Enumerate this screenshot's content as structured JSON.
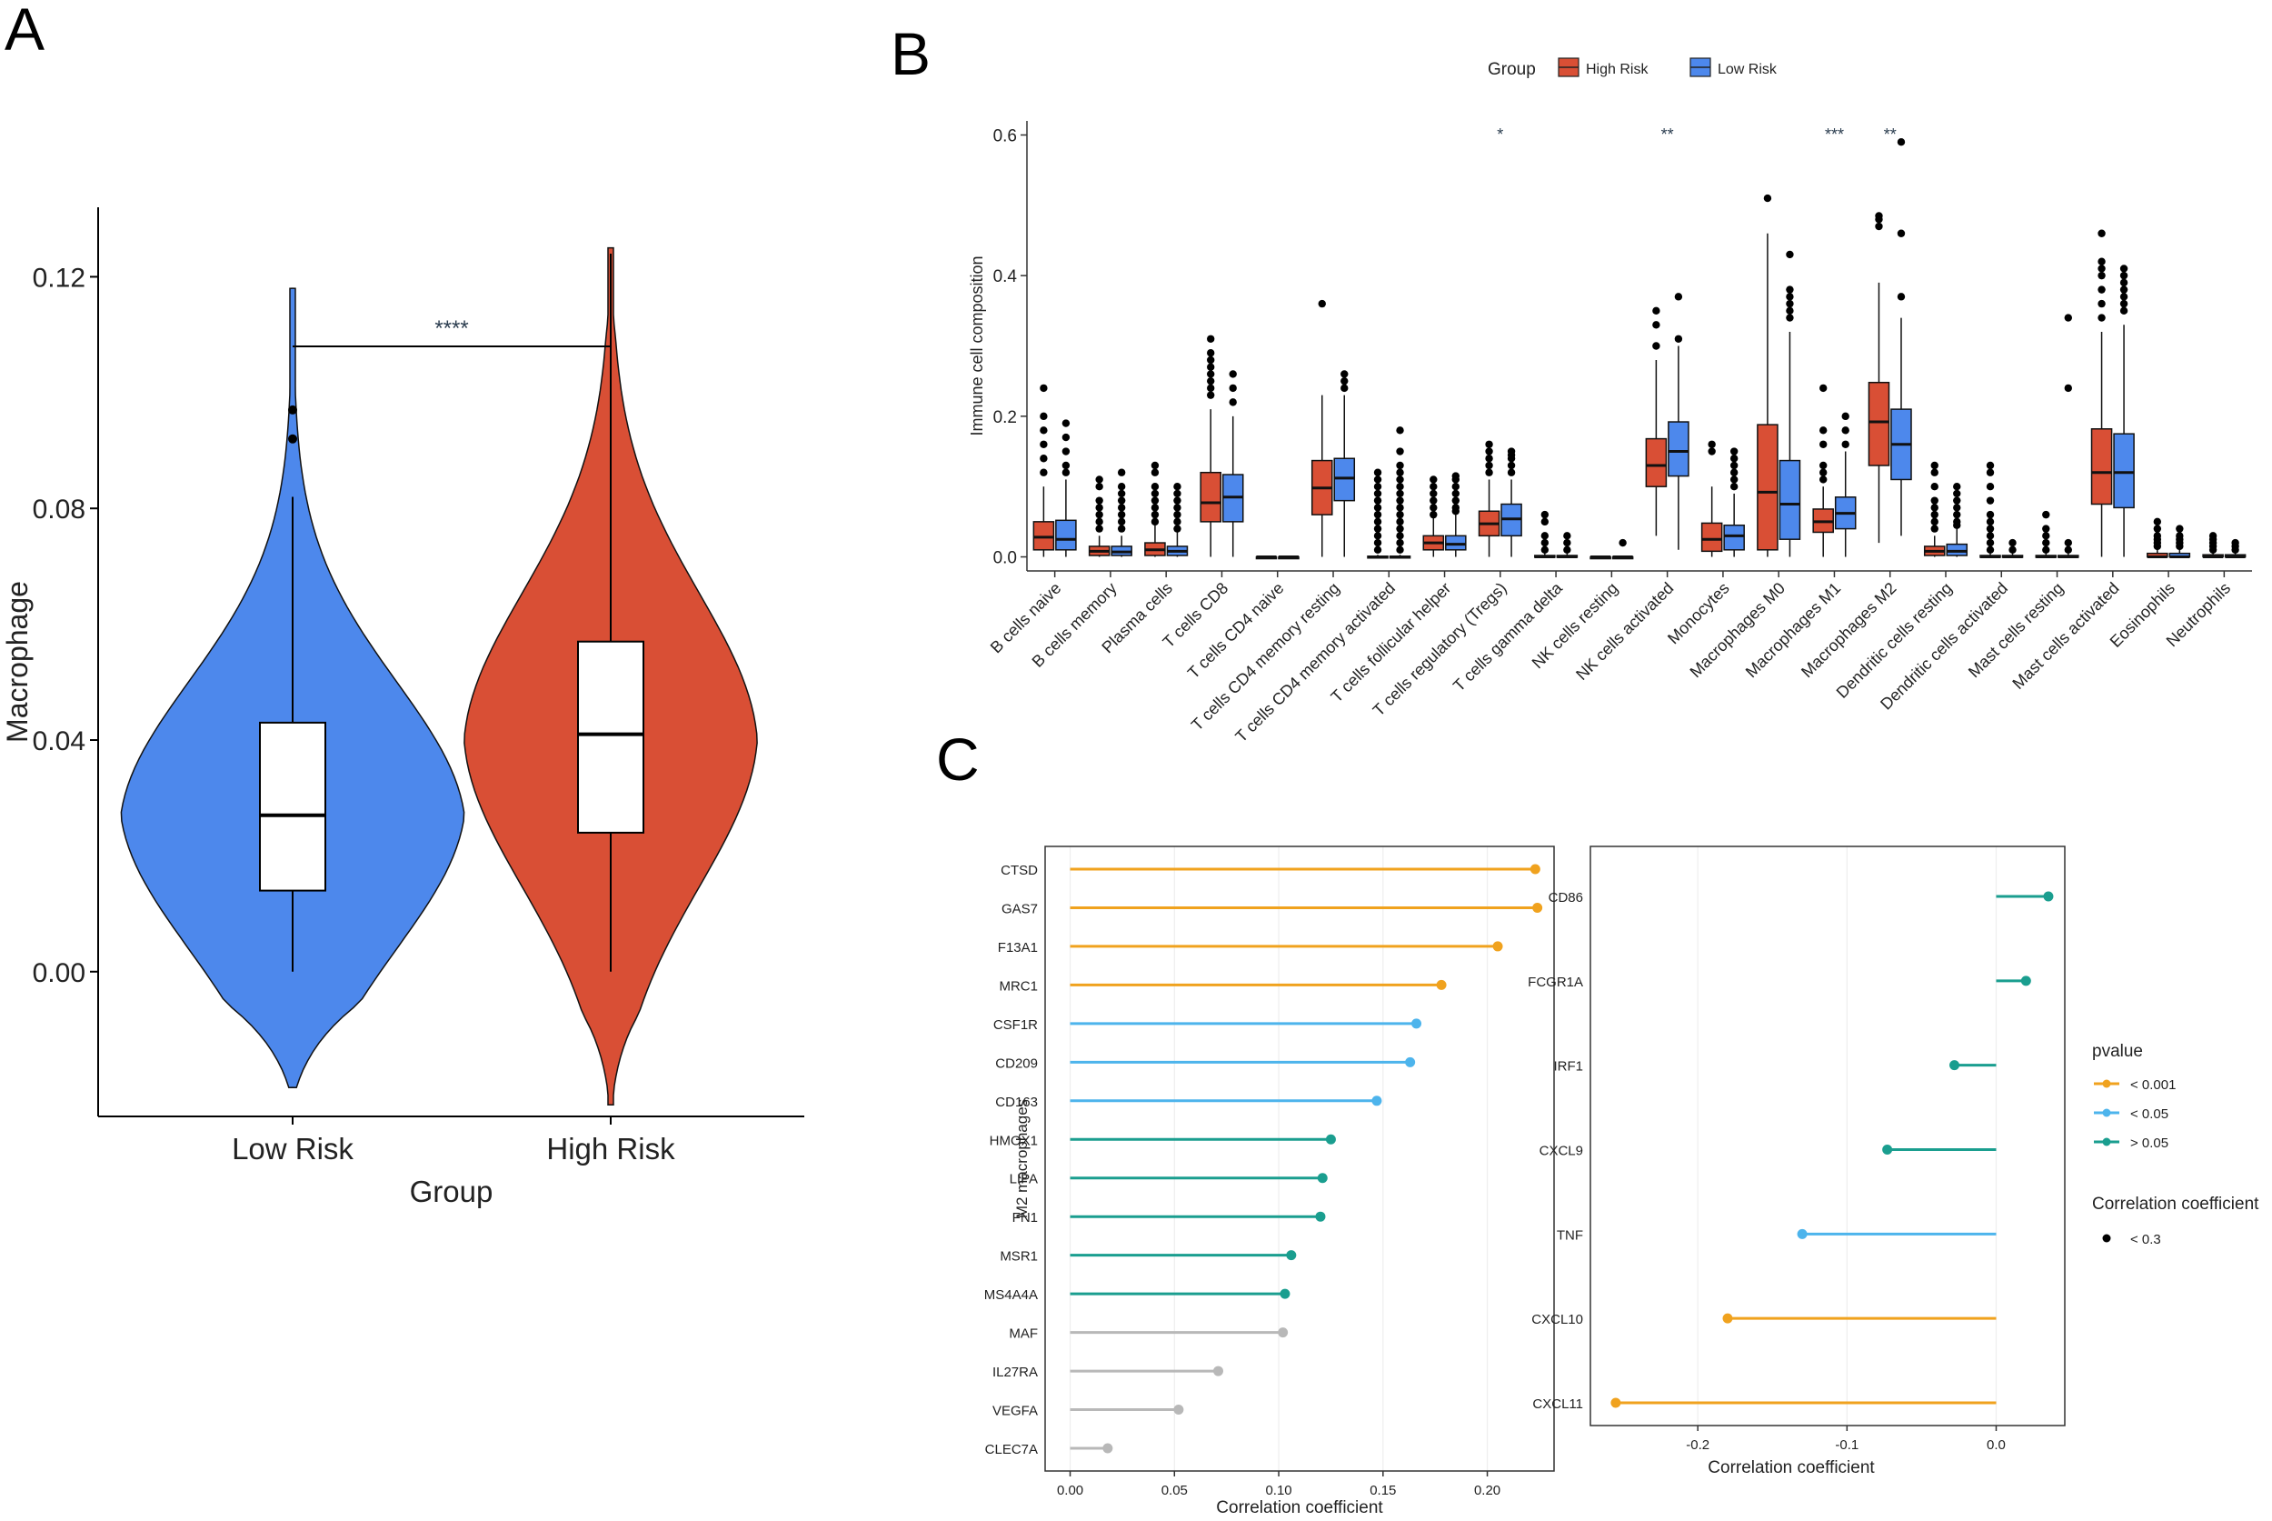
{
  "panels": {
    "a": "A",
    "b": "B",
    "c": "C"
  },
  "chart_data": [
    {
      "id": "A",
      "type": "violin",
      "xlabel": "Group",
      "ylabel": "Macrophage",
      "categories": [
        "Low Risk",
        "High Risk"
      ],
      "colors": {
        "Low Risk": "#4d88ec",
        "High Risk": "#d94f35"
      },
      "yticks": [
        0.0,
        0.04,
        0.08,
        0.12
      ],
      "ylim": [
        -0.025,
        0.132
      ],
      "significance": "****",
      "groups": [
        {
          "name": "Low Risk",
          "min": 0.0,
          "q1": 0.014,
          "median": 0.027,
          "q3": 0.043,
          "whisker_high": 0.082,
          "outliers": [
            0.092,
            0.097
          ],
          "range": [
            -0.02,
            0.118
          ]
        },
        {
          "name": "High Risk",
          "min": 0.0,
          "q1": 0.024,
          "median": 0.041,
          "q3": 0.057,
          "whisker_high": 0.124,
          "outliers": [],
          "range": [
            -0.023,
            0.125
          ]
        }
      ]
    },
    {
      "id": "B",
      "type": "boxplot",
      "legend_title": "Group",
      "legend_position": "top",
      "series": [
        {
          "name": "High Risk",
          "color": "#d94f35"
        },
        {
          "name": "Low Risk",
          "color": "#4d88ec"
        }
      ],
      "ylabel": "Immune cell composition",
      "yticks": [
        0.0,
        0.2,
        0.4,
        0.6
      ],
      "ylim": [
        -0.02,
        0.62
      ],
      "categories": [
        "B cells naive",
        "B cells memory",
        "Plasma cells",
        "T cells CD8",
        "T cells CD4 naive",
        "T cells CD4 memory resting",
        "T cells CD4 memory activated",
        "T cells follicular helper",
        "T cells regulatory (Tregs)",
        "T cells gamma delta",
        "NK cells resting",
        "NK cells activated",
        "Monocytes",
        "Macrophages M0",
        "Macrophages M1",
        "Macrophages M2",
        "Dendritic cells resting",
        "Dendritic cells activated",
        "Mast cells resting",
        "Mast cells activated",
        "Eosinophils",
        "Neutrophils"
      ],
      "significance": [
        "",
        "",
        "",
        "",
        "",
        "",
        "",
        "",
        "*",
        "",
        "",
        "**",
        "",
        "",
        "***",
        "**",
        "",
        "",
        "",
        "",
        "",
        ""
      ],
      "boxes": [
        [
          {
            "q1": 0.01,
            "med": 0.028,
            "q3": 0.05,
            "wl": 0,
            "wh": 0.1,
            "out": [
              0.12,
              0.14,
              0.16,
              0.18,
              0.2,
              0.24
            ]
          },
          {
            "q1": 0.01,
            "med": 0.025,
            "q3": 0.052,
            "wl": 0,
            "wh": 0.11,
            "out": [
              0.12,
              0.13,
              0.15,
              0.17,
              0.19
            ]
          }
        ],
        [
          {
            "q1": 0.002,
            "med": 0.008,
            "q3": 0.015,
            "wl": 0,
            "wh": 0.03,
            "out": [
              0.04,
              0.05,
              0.06,
              0.07,
              0.08,
              0.1,
              0.11
            ]
          },
          {
            "q1": 0.002,
            "med": 0.007,
            "q3": 0.015,
            "wl": 0,
            "wh": 0.03,
            "out": [
              0.04,
              0.05,
              0.06,
              0.07,
              0.08,
              0.09,
              0.1,
              0.12
            ]
          }
        ],
        [
          {
            "q1": 0.002,
            "med": 0.01,
            "q3": 0.02,
            "wl": 0,
            "wh": 0.045,
            "out": [
              0.05,
              0.06,
              0.07,
              0.08,
              0.09,
              0.1,
              0.12,
              0.13
            ]
          },
          {
            "q1": 0.002,
            "med": 0.008,
            "q3": 0.015,
            "wl": 0,
            "wh": 0.035,
            "out": [
              0.04,
              0.05,
              0.06,
              0.07,
              0.08,
              0.09,
              0.1
            ]
          }
        ],
        [
          {
            "q1": 0.05,
            "med": 0.077,
            "q3": 0.12,
            "wl": 0,
            "wh": 0.21,
            "out": [
              0.23,
              0.24,
              0.25,
              0.26,
              0.27,
              0.28,
              0.29,
              0.31
            ]
          },
          {
            "q1": 0.05,
            "med": 0.085,
            "q3": 0.117,
            "wl": 0,
            "wh": 0.2,
            "out": [
              0.22,
              0.24,
              0.26
            ]
          }
        ],
        [
          {
            "q1": 0,
            "med": 0,
            "q3": 0,
            "wl": 0,
            "wh": 0,
            "out": []
          },
          {
            "q1": 0,
            "med": 0,
            "q3": 0,
            "wl": 0,
            "wh": 0,
            "out": []
          }
        ],
        [
          {
            "q1": 0.06,
            "med": 0.098,
            "q3": 0.137,
            "wl": 0,
            "wh": 0.23,
            "out": [
              0.36
            ]
          },
          {
            "q1": 0.08,
            "med": 0.112,
            "q3": 0.14,
            "wl": 0,
            "wh": 0.23,
            "out": [
              0.24,
              0.25,
              0.26
            ]
          }
        ],
        [
          {
            "q1": 0,
            "med": 0,
            "q3": 0.001,
            "wl": 0,
            "wh": 0.003,
            "out": [
              0.01,
              0.02,
              0.03,
              0.04,
              0.05,
              0.06,
              0.07,
              0.08,
              0.09,
              0.1,
              0.11,
              0.12
            ]
          },
          {
            "q1": 0,
            "med": 0,
            "q3": 0.001,
            "wl": 0,
            "wh": 0.003,
            "out": [
              0.01,
              0.02,
              0.03,
              0.04,
              0.05,
              0.06,
              0.07,
              0.08,
              0.09,
              0.1,
              0.11,
              0.12,
              0.13,
              0.15,
              0.18
            ]
          }
        ],
        [
          {
            "q1": 0.01,
            "med": 0.02,
            "q3": 0.03,
            "wl": 0,
            "wh": 0.055,
            "out": [
              0.06,
              0.07,
              0.08,
              0.09,
              0.1,
              0.11
            ]
          },
          {
            "q1": 0.01,
            "med": 0.018,
            "q3": 0.03,
            "wl": 0,
            "wh": 0.06,
            "out": [
              0.065,
              0.07,
              0.08,
              0.09,
              0.1,
              0.11,
              0.115
            ]
          }
        ],
        [
          {
            "q1": 0.03,
            "med": 0.047,
            "q3": 0.065,
            "wl": 0,
            "wh": 0.11,
            "out": [
              0.12,
              0.13,
              0.14,
              0.15,
              0.16
            ]
          },
          {
            "q1": 0.03,
            "med": 0.054,
            "q3": 0.075,
            "wl": 0,
            "wh": 0.11,
            "out": [
              0.12,
              0.13,
              0.14,
              0.145,
              0.15
            ]
          }
        ],
        [
          {
            "q1": 0,
            "med": 0,
            "q3": 0.002,
            "wl": 0,
            "wh": 0.005,
            "out": [
              0.01,
              0.02,
              0.03,
              0.05,
              0.06
            ]
          },
          {
            "q1": 0,
            "med": 0,
            "q3": 0.002,
            "wl": 0,
            "wh": 0.005,
            "out": [
              0.01,
              0.02,
              0.03
            ]
          }
        ],
        [
          {
            "q1": 0,
            "med": 0,
            "q3": 0,
            "wl": 0,
            "wh": 0,
            "out": []
          },
          {
            "q1": 0,
            "med": 0,
            "q3": 0,
            "wl": 0,
            "wh": 0,
            "out": [
              0.02
            ]
          }
        ],
        [
          {
            "q1": 0.1,
            "med": 0.13,
            "q3": 0.168,
            "wl": 0.03,
            "wh": 0.28,
            "out": [
              0.3,
              0.33,
              0.35
            ]
          },
          {
            "q1": 0.115,
            "med": 0.15,
            "q3": 0.192,
            "wl": 0.01,
            "wh": 0.3,
            "out": [
              0.31,
              0.37
            ]
          }
        ],
        [
          {
            "q1": 0.008,
            "med": 0.025,
            "q3": 0.048,
            "wl": 0,
            "wh": 0.1,
            "out": [
              0.15,
              0.16
            ]
          },
          {
            "q1": 0.01,
            "med": 0.03,
            "q3": 0.045,
            "wl": 0,
            "wh": 0.09,
            "out": [
              0.1,
              0.11,
              0.12,
              0.13,
              0.14,
              0.15
            ]
          }
        ],
        [
          {
            "q1": 0.01,
            "med": 0.092,
            "q3": 0.188,
            "wl": 0,
            "wh": 0.46,
            "out": [
              0.51
            ]
          },
          {
            "q1": 0.025,
            "med": 0.075,
            "q3": 0.137,
            "wl": 0,
            "wh": 0.32,
            "out": [
              0.34,
              0.35,
              0.36,
              0.37,
              0.38,
              0.43
            ]
          }
        ],
        [
          {
            "q1": 0.035,
            "med": 0.05,
            "q3": 0.068,
            "wl": 0,
            "wh": 0.1,
            "out": [
              0.11,
              0.12,
              0.13,
              0.16,
              0.18,
              0.24
            ]
          },
          {
            "q1": 0.04,
            "med": 0.062,
            "q3": 0.085,
            "wl": 0,
            "wh": 0.15,
            "out": [
              0.16,
              0.18,
              0.2
            ]
          }
        ],
        [
          {
            "q1": 0.13,
            "med": 0.192,
            "q3": 0.248,
            "wl": 0.02,
            "wh": 0.39,
            "out": [
              0.47,
              0.48,
              0.485
            ]
          },
          {
            "q1": 0.11,
            "med": 0.16,
            "q3": 0.21,
            "wl": 0.03,
            "wh": 0.34,
            "out": [
              0.37,
              0.46,
              0.59
            ]
          }
        ],
        [
          {
            "q1": 0.002,
            "med": 0.008,
            "q3": 0.015,
            "wl": 0,
            "wh": 0.03,
            "out": [
              0.04,
              0.05,
              0.06,
              0.07,
              0.08,
              0.1,
              0.12,
              0.13
            ]
          },
          {
            "q1": 0.002,
            "med": 0.008,
            "q3": 0.018,
            "wl": 0,
            "wh": 0.04,
            "out": [
              0.045,
              0.05,
              0.06,
              0.07,
              0.08,
              0.09,
              0.1
            ]
          }
        ],
        [
          {
            "q1": 0,
            "med": 0,
            "q3": 0.002,
            "wl": 0,
            "wh": 0.005,
            "out": [
              0.01,
              0.02,
              0.03,
              0.04,
              0.05,
              0.06,
              0.08,
              0.1,
              0.12,
              0.13
            ]
          },
          {
            "q1": 0,
            "med": 0,
            "q3": 0.002,
            "wl": 0,
            "wh": 0.005,
            "out": [
              0.01,
              0.02
            ]
          }
        ],
        [
          {
            "q1": 0,
            "med": 0,
            "q3": 0.002,
            "wl": 0,
            "wh": 0.005,
            "out": [
              0.01,
              0.02,
              0.03,
              0.04,
              0.06
            ]
          },
          {
            "q1": 0,
            "med": 0,
            "q3": 0.002,
            "wl": 0,
            "wh": 0.005,
            "out": [
              0.01,
              0.02,
              0.24,
              0.34
            ]
          }
        ],
        [
          {
            "q1": 0.075,
            "med": 0.12,
            "q3": 0.182,
            "wl": 0,
            "wh": 0.32,
            "out": [
              0.34,
              0.36,
              0.38,
              0.4,
              0.41,
              0.42,
              0.46
            ]
          },
          {
            "q1": 0.07,
            "med": 0.12,
            "q3": 0.175,
            "wl": 0,
            "wh": 0.33,
            "out": [
              0.35,
              0.36,
              0.37,
              0.38,
              0.39,
              0.4,
              0.41
            ]
          }
        ],
        [
          {
            "q1": 0,
            "med": 0,
            "q3": 0.005,
            "wl": 0,
            "wh": 0.01,
            "out": [
              0.015,
              0.02,
              0.025,
              0.03,
              0.04,
              0.05
            ]
          },
          {
            "q1": 0,
            "med": 0,
            "q3": 0.005,
            "wl": 0,
            "wh": 0.01,
            "out": [
              0.015,
              0.02,
              0.025,
              0.03,
              0.04
            ]
          }
        ],
        [
          {
            "q1": 0,
            "med": 0,
            "q3": 0.003,
            "wl": 0,
            "wh": 0.006,
            "out": [
              0.01,
              0.015,
              0.02,
              0.025,
              0.03
            ]
          },
          {
            "q1": 0,
            "med": 0,
            "q3": 0.003,
            "wl": 0,
            "wh": 0.006,
            "out": [
              0.01,
              0.015,
              0.02
            ]
          }
        ]
      ]
    },
    {
      "id": "C-left",
      "type": "lollipop",
      "ylabel": "M2 macrophages",
      "xlabel": "Correlation coefficient",
      "xticks": [
        "0.00",
        "0.05",
        "0.10",
        "0.15",
        "0.20"
      ],
      "tick_values": [
        0,
        0.05,
        0.1,
        0.15,
        0.2
      ],
      "xlim": [
        -0.012,
        0.232
      ],
      "categories": [
        "CTSD",
        "GAS7",
        "F13A1",
        "MRC1",
        "CSF1R",
        "CD209",
        "CD163",
        "HMOX1",
        "LIPA",
        "FN1",
        "MSR1",
        "MS4A4A",
        "MAF",
        "IL27RA",
        "VEGFA",
        "CLEC7A"
      ],
      "values": [
        0.223,
        0.224,
        0.205,
        0.178,
        0.166,
        0.163,
        0.147,
        0.125,
        0.121,
        0.12,
        0.106,
        0.103,
        0.102,
        0.071,
        0.052,
        0.018
      ],
      "pvalue_class": [
        "<0.001",
        "<0.001",
        "<0.001",
        "<0.001",
        "<0.05",
        "<0.05",
        "<0.05",
        ">0.05",
        ">0.05",
        ">0.05",
        ">0.05",
        ">0.05",
        "ns",
        "ns",
        "ns",
        "ns"
      ]
    },
    {
      "id": "C-right",
      "type": "lollipop",
      "xlabel": "Correlation coefficient",
      "xticks": [
        "-0.2",
        "-0.1",
        "0.0"
      ],
      "tick_values": [
        -0.2,
        -0.1,
        0.0
      ],
      "xlim": [
        -0.272,
        0.046
      ],
      "categories": [
        "CD86",
        "FCGR1A",
        "IRF1",
        "CXCL9",
        "TNF",
        "CXCL10",
        "CXCL11"
      ],
      "values": [
        0.035,
        0.02,
        -0.028,
        -0.073,
        -0.13,
        -0.18,
        -0.255
      ],
      "pvalue_class": [
        ">0.05",
        ">0.05",
        ">0.05",
        ">0.05",
        "<0.05",
        "<0.001",
        "<0.001"
      ]
    }
  ],
  "legend_c": {
    "pvalue_title": "pvalue",
    "pvalue_items": [
      {
        "label": "< 0.001",
        "key": "<0.001"
      },
      {
        "label": "< 0.05",
        "key": "<0.05"
      },
      {
        "label": "> 0.05",
        "key": ">0.05"
      }
    ],
    "corr_title": "Correlation coefficient",
    "corr_items": [
      {
        "label": "< 0.3"
      }
    ]
  },
  "colors": {
    "p001": "#f0a21e",
    "p05": "#4db4ec",
    "pgt05": "#1a9e8f",
    "ns": "#b8b8b8",
    "high": "#d94f35",
    "low": "#4d88ec"
  }
}
